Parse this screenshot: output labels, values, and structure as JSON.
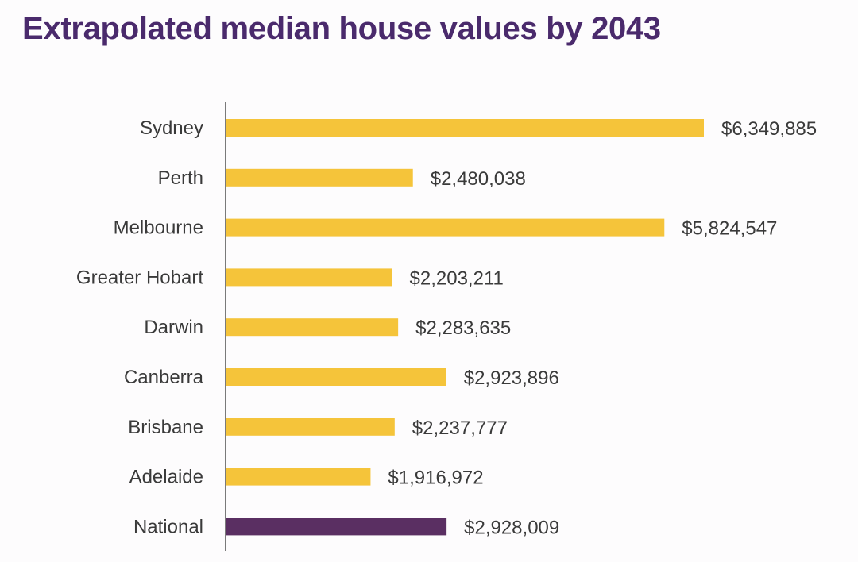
{
  "title": "Extrapolated median house values by 2043",
  "colors": {
    "title": "#4a2a6c",
    "bar": "#f5c43a",
    "bar_highlight": "#5a2f62",
    "axis": "#7a7a7a",
    "text": "#3a3a3a"
  },
  "chart_data": {
    "type": "bar",
    "orientation": "horizontal",
    "title": "Extrapolated median house values by 2043",
    "xlabel": "",
    "ylabel": "",
    "xlim": [
      0,
      6349885
    ],
    "grid": false,
    "legend": "none",
    "categories": [
      "Sydney",
      "Perth",
      "Melbourne",
      "Greater Hobart",
      "Darwin",
      "Canberra",
      "Brisbane",
      "Adelaide",
      "National"
    ],
    "values": [
      6349885,
      2480038,
      5824547,
      2203211,
      2283635,
      2923896,
      2237777,
      1916972,
      2928009
    ],
    "value_labels": [
      "$6,349,885",
      "$2,480,038",
      "$5,824,547",
      "$2,203,211",
      "$2,283,635",
      "$2,923,896",
      "$2,237,777",
      "$1,916,972",
      "$2,928,009"
    ],
    "highlight": [
      "National"
    ]
  }
}
